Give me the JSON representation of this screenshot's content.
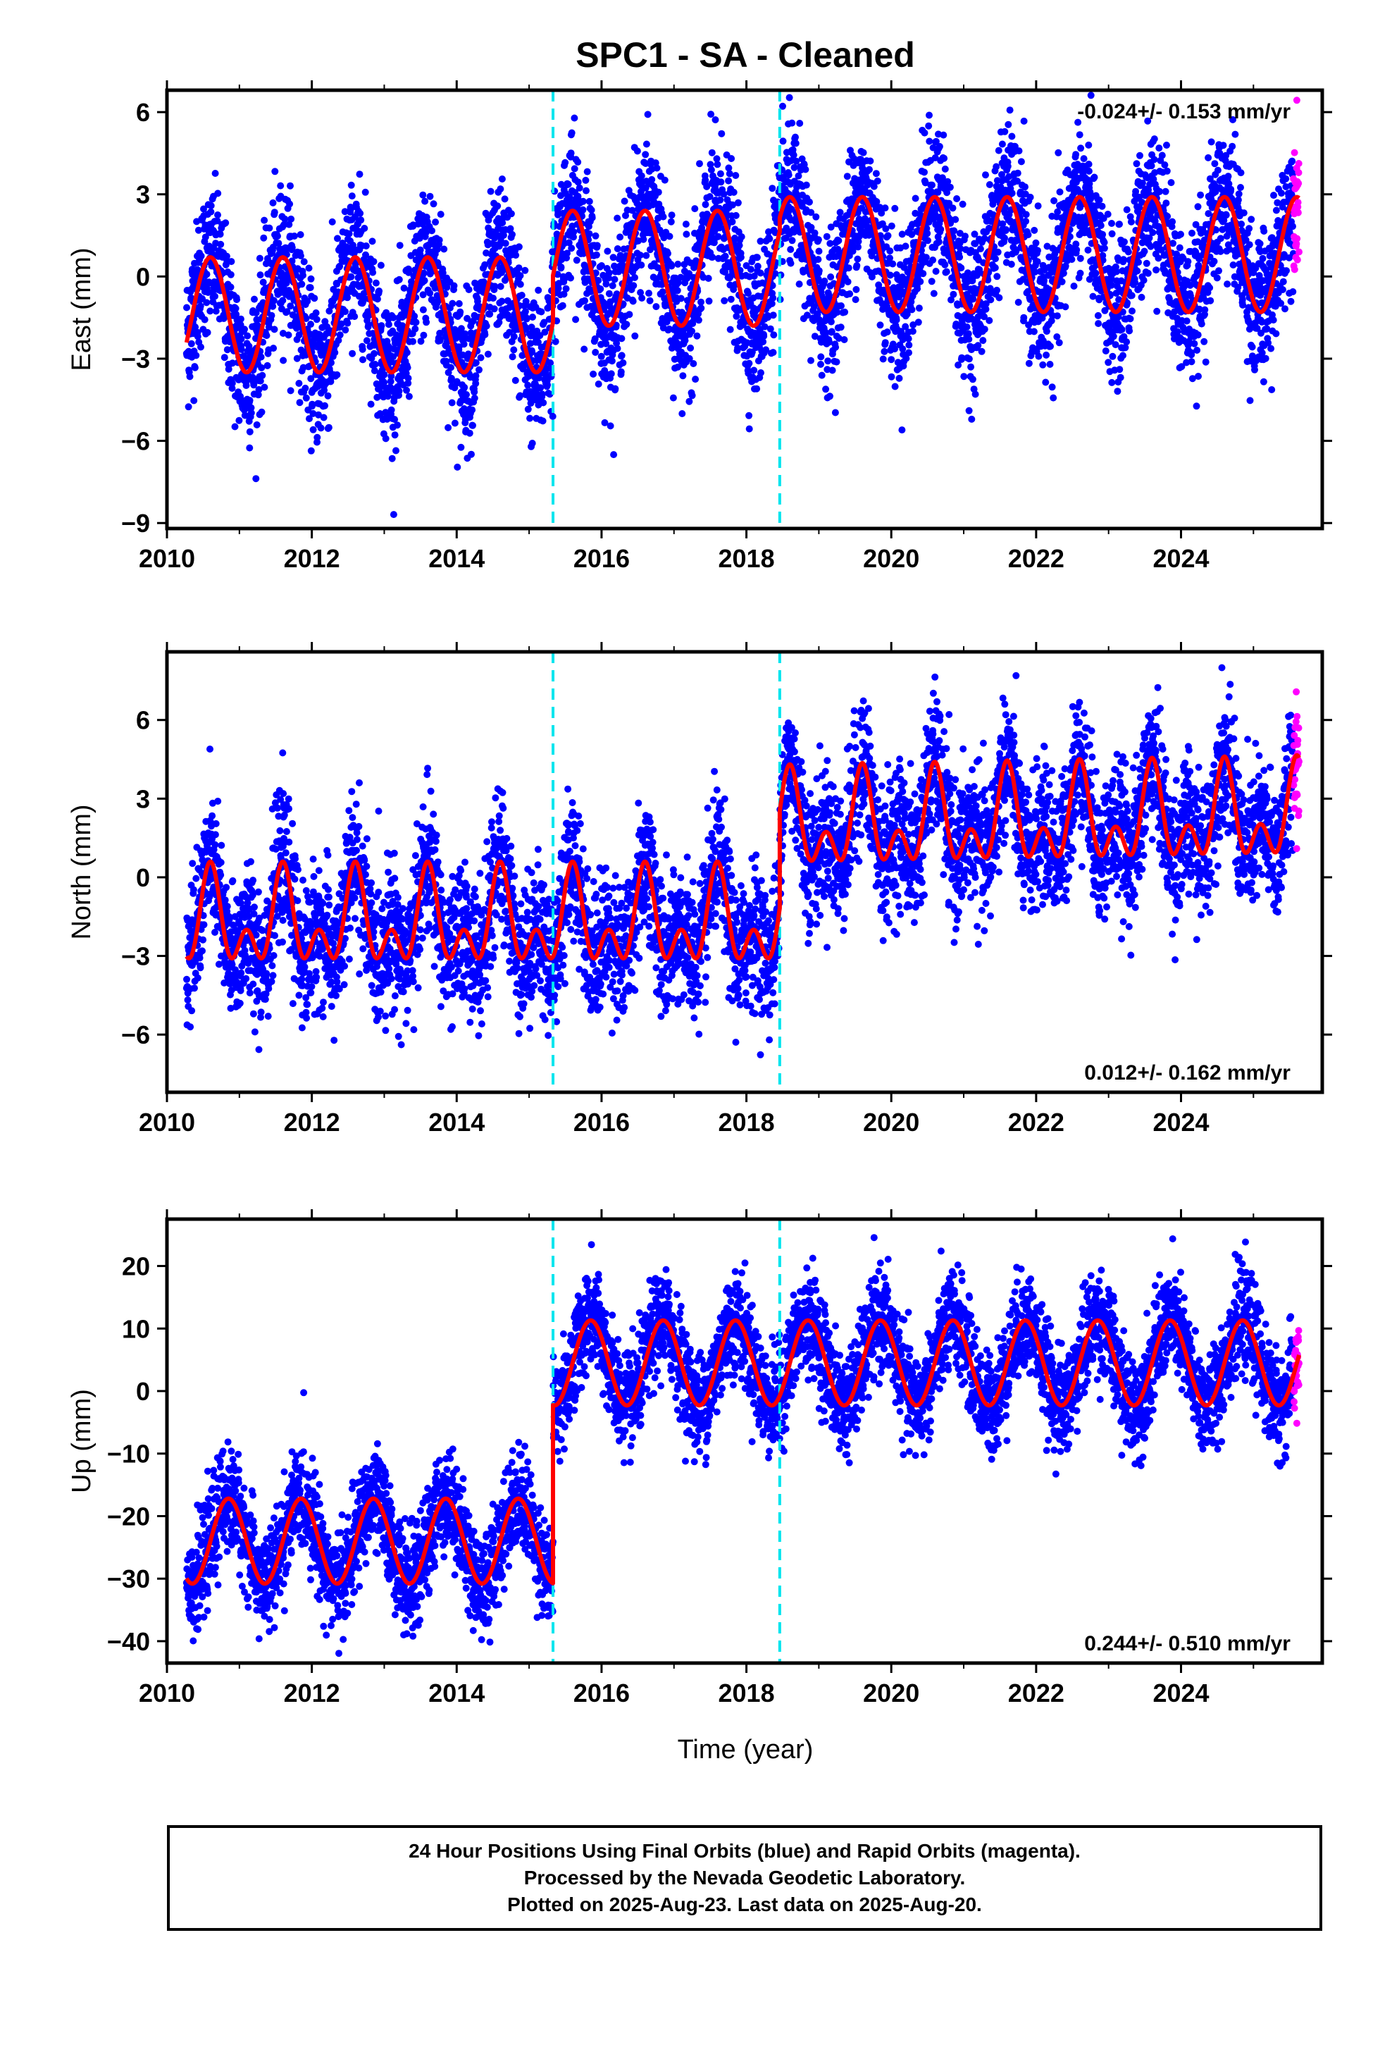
{
  "title": "SPC1  - SA - Cleaned",
  "colors": {
    "final_orbits": "#0000ff",
    "rapid_orbits": "#ff00ff",
    "model_fit": "#ff0000",
    "offsets": "#00e5ee",
    "frame": "#000000"
  },
  "footer": {
    "line1": "24 Hour Positions Using Final Orbits (blue) and Rapid Orbits (magenta).",
    "line2": "Processed by the Nevada Geodetic Laboratory.",
    "line3": "Plotted on 2025-Aug-23. Last data on 2025-Aug-20."
  },
  "chart_data": [
    {
      "type": "scatter",
      "panel": "east",
      "title": "SPC1  - SA - Cleaned",
      "xlabel": "",
      "ylabel": "East (mm)",
      "xlim": [
        2010,
        2025.95
      ],
      "ylim": [
        -9.2,
        6.8
      ],
      "x_ticks": [
        2010,
        2012,
        2014,
        2016,
        2018,
        2020,
        2022,
        2024
      ],
      "x_tick_labels": [
        "2010",
        "2012",
        "2014",
        "2016",
        "2018",
        "2020",
        "2022",
        "2024"
      ],
      "y_ticks": [
        -9,
        -6,
        -3,
        0,
        3,
        6
      ],
      "y_tick_labels": [
        "−9",
        "−6",
        "−3",
        "0",
        "3",
        "6"
      ],
      "rate_label": "-0.024+/- 0.153 mm/yr",
      "rate_label_position": "top-right",
      "offsets": [
        2015.33,
        2018.46
      ],
      "data_range": [
        2010.27,
        2025.63
      ],
      "rapid_start": 2025.55,
      "fit_segments": [
        {
          "x0": 2010.27,
          "x1": 2015.33,
          "offset": -1.4,
          "amplitude": 2.1,
          "phase_peak": 0.6,
          "trend": 0
        },
        {
          "x0": 2015.33,
          "x1": 2018.46,
          "offset": 0.3,
          "amplitude": 2.1,
          "phase_peak": 0.6,
          "trend": 0
        },
        {
          "x0": 2018.46,
          "x1": 2025.63,
          "offset": 0.8,
          "amplitude": 2.1,
          "phase_peak": 0.6,
          "trend": 0
        }
      ],
      "scatter_noise": 1.3
    },
    {
      "type": "scatter",
      "panel": "north",
      "title": "",
      "xlabel": "",
      "ylabel": "North (mm)",
      "xlim": [
        2010,
        2025.95
      ],
      "ylim": [
        -8.2,
        8.6
      ],
      "x_ticks": [
        2010,
        2012,
        2014,
        2016,
        2018,
        2020,
        2022,
        2024
      ],
      "x_tick_labels": [
        "2010",
        "2012",
        "2014",
        "2016",
        "2018",
        "2020",
        "2022",
        "2024"
      ],
      "y_ticks": [
        -6,
        -3,
        0,
        3,
        6
      ],
      "y_tick_labels": [
        "−6",
        "−3",
        "0",
        "3",
        "6"
      ],
      "rate_label": "0.012+/- 0.162 mm/yr",
      "rate_label_position": "bottom-right",
      "offsets": [
        2015.33,
        2018.46
      ],
      "data_range": [
        2010.27,
        2025.63
      ],
      "rapid_start": 2025.55,
      "fit_segments": [
        {
          "x0": 2010.27,
          "x1": 2015.33,
          "offset": -1.8,
          "amplitude": 1.3,
          "amplitude2": 1.1,
          "phase_peak": 0.6,
          "trend": 0
        },
        {
          "x0": 2015.33,
          "x1": 2018.46,
          "offset": -1.8,
          "amplitude": 1.3,
          "amplitude2": 1.1,
          "phase_peak": 0.6,
          "trend": 0
        },
        {
          "x0": 2018.46,
          "x1": 2025.63,
          "offset": 1.9,
          "amplitude": 1.3,
          "amplitude2": 1.1,
          "phase_peak": 0.6,
          "trend": 0.05
        }
      ],
      "scatter_noise": 1.3
    },
    {
      "type": "scatter",
      "panel": "up",
      "title": "",
      "xlabel": "Time (year)",
      "ylabel": "Up (mm)",
      "xlim": [
        2010,
        2025.95
      ],
      "ylim": [
        -43.5,
        27.5
      ],
      "x_ticks": [
        2010,
        2012,
        2014,
        2016,
        2018,
        2020,
        2022,
        2024
      ],
      "x_tick_labels": [
        "2010",
        "2012",
        "2014",
        "2016",
        "2018",
        "2020",
        "2022",
        "2024"
      ],
      "y_ticks": [
        -40,
        -30,
        -20,
        -10,
        0,
        10,
        20
      ],
      "y_tick_labels": [
        "−40",
        "−30",
        "−20",
        "−10",
        "0",
        "10",
        "20"
      ],
      "rate_label": "0.244+/- 0.510 mm/yr",
      "rate_label_position": "bottom-right",
      "offsets": [
        2015.33,
        2018.46
      ],
      "data_range": [
        2010.27,
        2025.63
      ],
      "rapid_start": 2025.55,
      "fit_segments": [
        {
          "x0": 2010.27,
          "x1": 2015.33,
          "offset": -24,
          "amplitude": 6.8,
          "phase_peak": 0.85,
          "trend": 0
        },
        {
          "x0": 2015.33,
          "x1": 2018.46,
          "offset": 4.5,
          "amplitude": 6.8,
          "phase_peak": 0.85,
          "trend": 0
        },
        {
          "x0": 2018.46,
          "x1": 2025.63,
          "offset": 4.5,
          "amplitude": 6.8,
          "phase_peak": 0.85,
          "trend": 0
        }
      ],
      "scatter_noise": 4.0
    }
  ]
}
